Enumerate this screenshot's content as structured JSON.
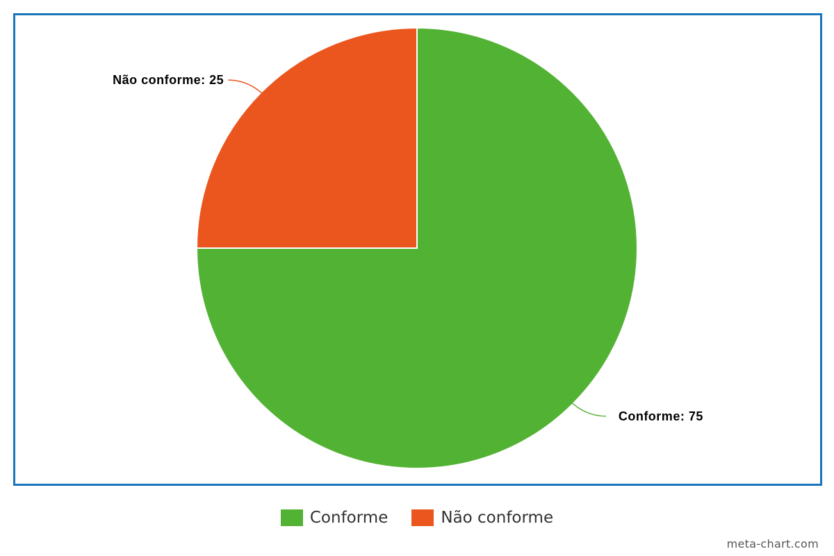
{
  "chart_data": {
    "type": "pie",
    "title": "",
    "categories": [
      "Conforme",
      "Não conforme"
    ],
    "values": [
      75,
      25
    ],
    "colors": [
      "#52b234",
      "#eb561e"
    ],
    "data_labels": [
      "Conforme: 75",
      "Não conforme: 25"
    ],
    "legend": {
      "placement": "bottom-center",
      "entries": [
        "Conforme",
        "Não conforme"
      ]
    }
  },
  "watermark": "meta-chart.com"
}
